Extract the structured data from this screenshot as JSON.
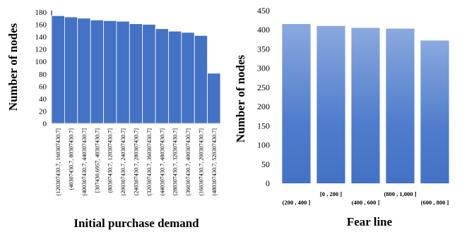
{
  "chart_data": [
    {
      "type": "bar",
      "title": "",
      "xlabel": "Initial purchase demand",
      "ylabel": "Number of nodes",
      "ylim": [
        0,
        180
      ],
      "yticks": [
        0,
        20,
        40,
        60,
        80,
        100,
        120,
        140,
        160,
        180
      ],
      "grid": false,
      "bar_color": "#4472c4",
      "categories": [
        "(120307430.7, 160307430.7]",
        "(40307430.7, 80307430.7]",
        "(400307430.7, 440307430.7]",
        "[307430.6957, 40307430.7]",
        "(80307430.7, 120307430.7]",
        "(200307430.7, 240307430.7]",
        "(240307430.7, 280307430.7]",
        "(320307430.7, 360307430.7]",
        "(440307430.7, 480307430.7]",
        "(280307430.7, 320307430.7]",
        "(360307430.7, 400307430.7]",
        "(160307430.7, 200307430.7]",
        "(480307430.7, 520307430.7]"
      ],
      "values": [
        174,
        172,
        170,
        167,
        166,
        165,
        161,
        160,
        153,
        149,
        147,
        142,
        81
      ]
    },
    {
      "type": "bar",
      "title": "",
      "xlabel": "Fear line",
      "ylabel": "Number of nodes",
      "ylim": [
        0,
        450
      ],
      "yticks": [
        0,
        50,
        100,
        150,
        200,
        250,
        300,
        350,
        400,
        450
      ],
      "grid": false,
      "bar_color": "#4472c4",
      "bar_color_light": "#8aa9de",
      "categories": [
        "(200 , 400 ]",
        "[0 , 200 ]",
        "(400 , 600 ]",
        "(800 , 1,000 ]",
        "(600 , 800 ]"
      ],
      "values": [
        415,
        410,
        405,
        403,
        372
      ]
    }
  ]
}
